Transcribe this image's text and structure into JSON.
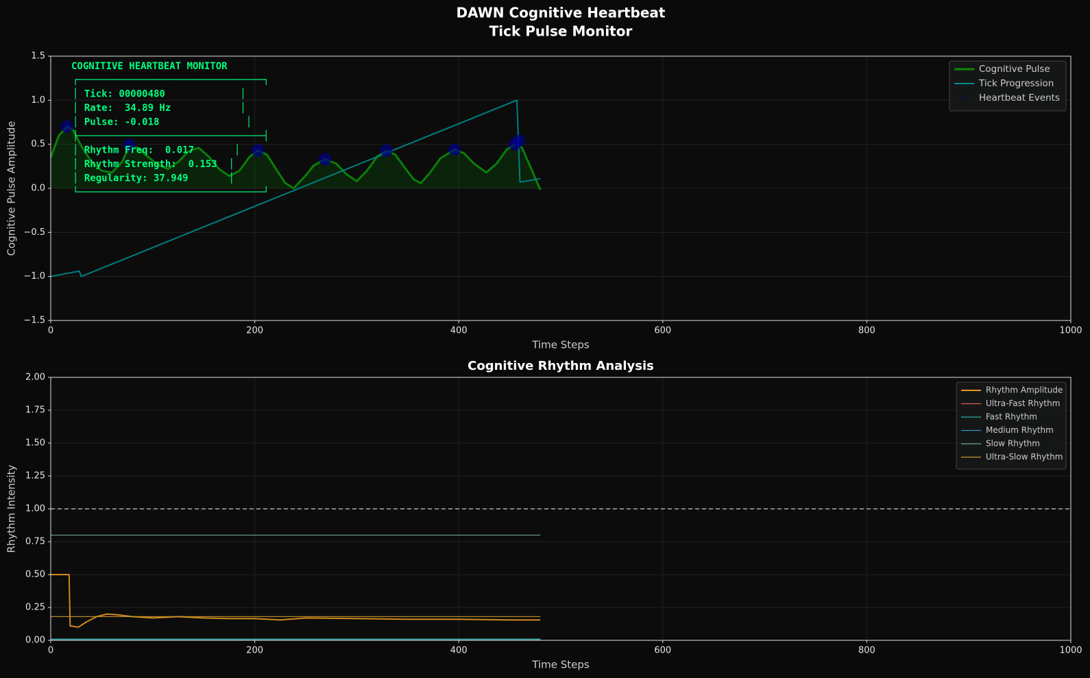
{
  "title_lines": [
    "DAWN Cognitive Heartbeat",
    "Tick Pulse Monitor"
  ],
  "chart_data": [
    {
      "type": "line",
      "xlabel": "Time Steps",
      "ylabel": "Cognitive Pulse Amplitude",
      "xlim": [
        0,
        1000
      ],
      "ylim": [
        -1.5,
        1.5
      ],
      "xticks": [
        0,
        200,
        400,
        600,
        800,
        1000
      ],
      "yticks": [
        {
          "value": -1.5,
          "label": "−1.5"
        },
        {
          "value": -1,
          "label": "−1.0"
        },
        {
          "value": -0.5,
          "label": "−0.5"
        },
        {
          "value": 0,
          "label": "0.0"
        },
        0.5,
        {
          "value": 1,
          "label": "1.0"
        },
        1.5
      ],
      "grid": true,
      "legend": "upper right",
      "series": [
        {
          "name": "Cognitive Pulse",
          "color": "#0a8a0a",
          "width": 3,
          "fill": true,
          "x": [
            0,
            8,
            16,
            22,
            30,
            40,
            50,
            60,
            70,
            77,
            85,
            95,
            105,
            115,
            125,
            135,
            145,
            155,
            165,
            175,
            185,
            195,
            203,
            212,
            222,
            230,
            238,
            248,
            258,
            269,
            280,
            290,
            300,
            310,
            320,
            329,
            338,
            348,
            356,
            363,
            372,
            382,
            396,
            405,
            415,
            427,
            437,
            447,
            455,
            462,
            470,
            480
          ],
          "values": [
            0.35,
            0.6,
            0.7,
            0.66,
            0.48,
            0.3,
            0.2,
            0.18,
            0.3,
            0.48,
            0.46,
            0.36,
            0.27,
            0.22,
            0.3,
            0.42,
            0.46,
            0.36,
            0.22,
            0.14,
            0.2,
            0.36,
            0.43,
            0.38,
            0.2,
            0.06,
            0.0,
            0.12,
            0.26,
            0.33,
            0.28,
            0.16,
            0.08,
            0.2,
            0.36,
            0.43,
            0.38,
            0.22,
            0.1,
            0.06,
            0.18,
            0.34,
            0.44,
            0.4,
            0.28,
            0.18,
            0.28,
            0.44,
            0.5,
            0.46,
            0.25,
            -0.018
          ]
        },
        {
          "name": "Tick Progression",
          "color": "#008b8b",
          "width": 2,
          "x": [
            0,
            28,
            30,
            457,
            460,
            480
          ],
          "values": [
            -1,
            -0.94,
            -1,
            1,
            0.07,
            0.11
          ]
        },
        {
          "name": "Heartbeat Events",
          "type": "scatter",
          "color": "#00008b",
          "x": [
            16,
            77,
            203,
            269,
            329,
            396,
            455,
            459
          ],
          "values": [
            0.7,
            0.49,
            0.43,
            0.33,
            0.43,
            0.44,
            0.5,
            0.54
          ]
        }
      ],
      "annotation": {
        "color": "#00ff7f",
        "lines": [
          "COGNITIVE HEARTBEAT MONITOR",
          "┌────────────────────────────────┐",
          "│ Tick: 00000480             │",
          "│ Rate:  34.89 Hz            │",
          "│ Pulse: -0.018               │",
          "├────────────────────────────────┤",
          "│ Rhythm Freq:  0.017       │",
          "│ Rhythm Strength:  0.153  │",
          "│ Regularity: 37.949       │",
          "└────────────────────────────────┘"
        ]
      }
    },
    {
      "type": "line",
      "title": "Cognitive Rhythm Analysis",
      "xlabel": "Time Steps",
      "ylabel": "Rhythm Intensity",
      "xlim": [
        0,
        1000
      ],
      "ylim": [
        0,
        2
      ],
      "xticks": [
        0,
        200,
        400,
        600,
        800,
        1000
      ],
      "yticks": [
        {
          "value": 0,
          "label": "0.00"
        },
        0.25,
        {
          "value": 0.5,
          "label": "0.50"
        },
        0.75,
        {
          "value": 1,
          "label": "1.00"
        },
        1.25,
        {
          "value": 1.5,
          "label": "1.50"
        },
        1.75,
        {
          "value": 2,
          "label": "2.00"
        }
      ],
      "grid": true,
      "legend": "upper right",
      "legend_size": "small",
      "hlines": [
        {
          "value": 1,
          "color": "#aaaaaa",
          "style": "dashed"
        }
      ],
      "series": [
        {
          "name": "Rhythm Amplitude",
          "color": "#e8961e",
          "width": 2,
          "x": [
            0,
            18,
            19,
            27,
            35,
            45,
            55,
            65,
            80,
            100,
            125,
            150,
            175,
            200,
            225,
            250,
            300,
            350,
            400,
            450,
            480
          ],
          "values": [
            0.5,
            0.5,
            0.11,
            0.1,
            0.14,
            0.18,
            0.2,
            0.195,
            0.18,
            0.17,
            0.18,
            0.17,
            0.165,
            0.165,
            0.155,
            0.17,
            0.165,
            0.16,
            0.16,
            0.155,
            0.155
          ]
        },
        {
          "name": "Ultra-Fast Rhythm",
          "color": "#e05a4a",
          "width": 1.2,
          "x": [
            0,
            480
          ],
          "values": [
            0.01,
            0.01
          ]
        },
        {
          "name": "Fast Rhythm",
          "color": "#2ab0a0",
          "width": 1.2,
          "x": [
            0,
            480
          ],
          "values": [
            0.01,
            0.01
          ]
        },
        {
          "name": "Medium Rhythm",
          "color": "#2a98b0",
          "width": 1.2,
          "x": [
            0,
            480
          ],
          "values": [
            0.005,
            0.005
          ]
        },
        {
          "name": "Slow Rhythm",
          "color": "#6ba596",
          "width": 1.2,
          "x": [
            0,
            480
          ],
          "values": [
            0.8,
            0.8
          ]
        },
        {
          "name": "Ultra-Slow Rhythm",
          "color": "#c8962c",
          "width": 1.2,
          "x": [
            0,
            480
          ],
          "values": [
            0.18,
            0.18
          ]
        }
      ]
    }
  ]
}
